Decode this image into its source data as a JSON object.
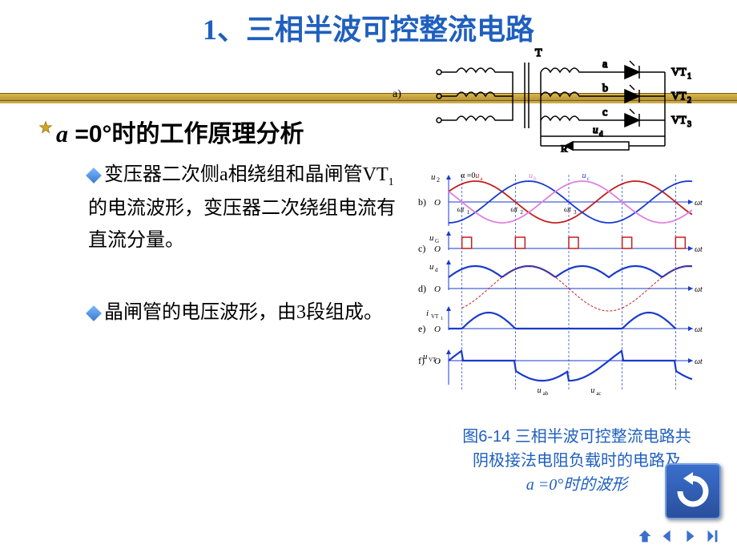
{
  "title": "1、三相半波可控整流电路",
  "subheading": {
    "prefix": "a",
    "text": " =0°时的工作原理分析"
  },
  "bullets": [
    {
      "text_before": "变压器二次侧a相绕组和晶闸管VT",
      "sub": "1",
      "text_after": "的电流波形，变压器二次绕组电流有直流分量。"
    },
    {
      "text_before": "晶闸管的电压波形，由3段组成。",
      "sub": "",
      "text_after": ""
    }
  ],
  "caption": {
    "line1": "图6-14 三相半波可控整流电路共",
    "line2": "阴极接法电阻负载时的电路及",
    "line3": "a =0°时的波形"
  },
  "circuit": {
    "terminal_label": "T",
    "phase_labels": [
      "a",
      "b",
      "c"
    ],
    "vt_labels": [
      "VT",
      "VT",
      "VT"
    ],
    "vt_subs": [
      "1",
      "2",
      "3"
    ],
    "ud_label": "u",
    "ud_sub": "d",
    "R_label": "R",
    "panel_a_label": "a)",
    "colors": {
      "stroke": "#000000",
      "bg": "#ffffff"
    }
  },
  "waveforms": {
    "panel_labels": [
      "b)",
      "c)",
      "d)",
      "e)",
      "f)"
    ],
    "ylabels": [
      {
        "t": "u",
        "s": "2"
      },
      {
        "t": "u",
        "s": "G"
      },
      {
        "t": "u",
        "s": "d"
      },
      {
        "t": "i",
        "s": "VT1"
      },
      {
        "t": "u",
        "s": "VT1"
      }
    ],
    "xlabel": "ωt",
    "top_annotations": {
      "alpha_eq": "α =0",
      "ua": "u",
      "ua_s": "a",
      "ub": "u",
      "ub_s": "b",
      "uc": "u",
      "uc_s": "c"
    },
    "wt_ticks": [
      "ωt",
      "ωt",
      "ωt"
    ],
    "wt_subs": [
      "1",
      "2",
      "3"
    ],
    "bottom_labels": [
      {
        "t": "u",
        "s": "ab"
      },
      {
        "t": "u",
        "s": "ac"
      }
    ],
    "colors": {
      "ua": "#c02020",
      "ub": "#e080e0",
      "uc": "#1a3acc",
      "axis": "#1a3acc",
      "dash": "#1a3acc",
      "pulse": "#c02020",
      "ud_env": "#1a3acc",
      "ud_dash": "#c02020",
      "ivt": "#1a3acc",
      "uvt": "#1a3acc"
    },
    "panel_b": {
      "type": "sine_overlay",
      "xlim": [
        0,
        780
      ],
      "ylim": [
        -1,
        1
      ],
      "amplitude": 1,
      "periods": 2.2,
      "phases_deg": [
        0,
        120,
        240
      ]
    },
    "panel_c": {
      "type": "pulses",
      "pulse_x": [
        65,
        165,
        265,
        365,
        465
      ],
      "pulse_w": 14,
      "pulse_h": 14
    },
    "panel_d": {
      "type": "rectified_envelope"
    },
    "panel_e": {
      "type": "current_step",
      "on": [
        [
          65,
          165
        ],
        [
          365,
          465
        ]
      ],
      "h": 18
    },
    "panel_f": {
      "type": "vt_voltage"
    }
  },
  "nav": {
    "icons": [
      "home",
      "prev",
      "next",
      "last"
    ]
  },
  "reset_icon_color": "#ffffff"
}
